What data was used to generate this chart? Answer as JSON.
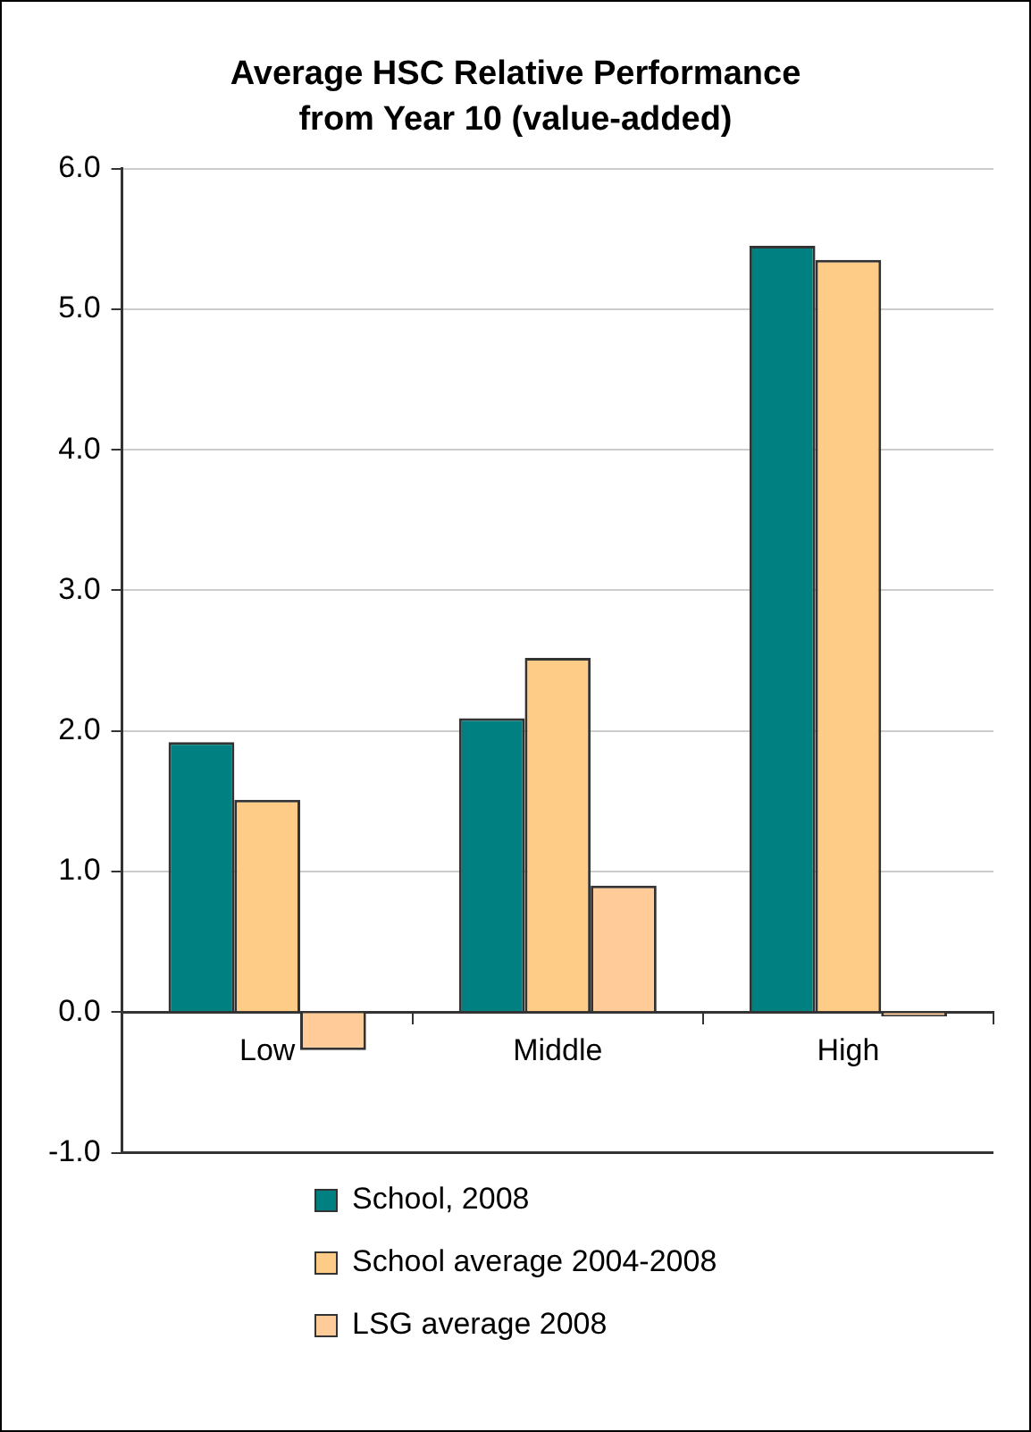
{
  "chart_data": {
    "type": "bar",
    "title": "Average HSC Relative Performance\nfrom Year 10 (value-added)",
    "categories": [
      "Low",
      "Middle",
      "High"
    ],
    "series": [
      {
        "name": "School, 2008",
        "color": "#008080",
        "values": [
          1.92,
          2.09,
          5.45
        ]
      },
      {
        "name": "School average 2004-2008",
        "color": "#ffcc88",
        "values": [
          1.51,
          2.52,
          5.35
        ]
      },
      {
        "name": "LSG average 2008",
        "color": "#ffcc99",
        "values": [
          -0.27,
          0.9,
          -0.03
        ]
      }
    ],
    "ylim": [
      -1,
      6
    ],
    "yticks": [
      {
        "value": -1,
        "label": "-1.0"
      },
      {
        "value": 0,
        "label": "0.0"
      },
      {
        "value": 1,
        "label": "1.0"
      },
      {
        "value": 2,
        "label": "2.0"
      },
      {
        "value": 3,
        "label": "3.0"
      },
      {
        "value": 4,
        "label": "4.0"
      },
      {
        "value": 5,
        "label": "5.0"
      },
      {
        "value": 6,
        "label": "6.0"
      }
    ],
    "grid": "y",
    "legend": "bottom"
  }
}
